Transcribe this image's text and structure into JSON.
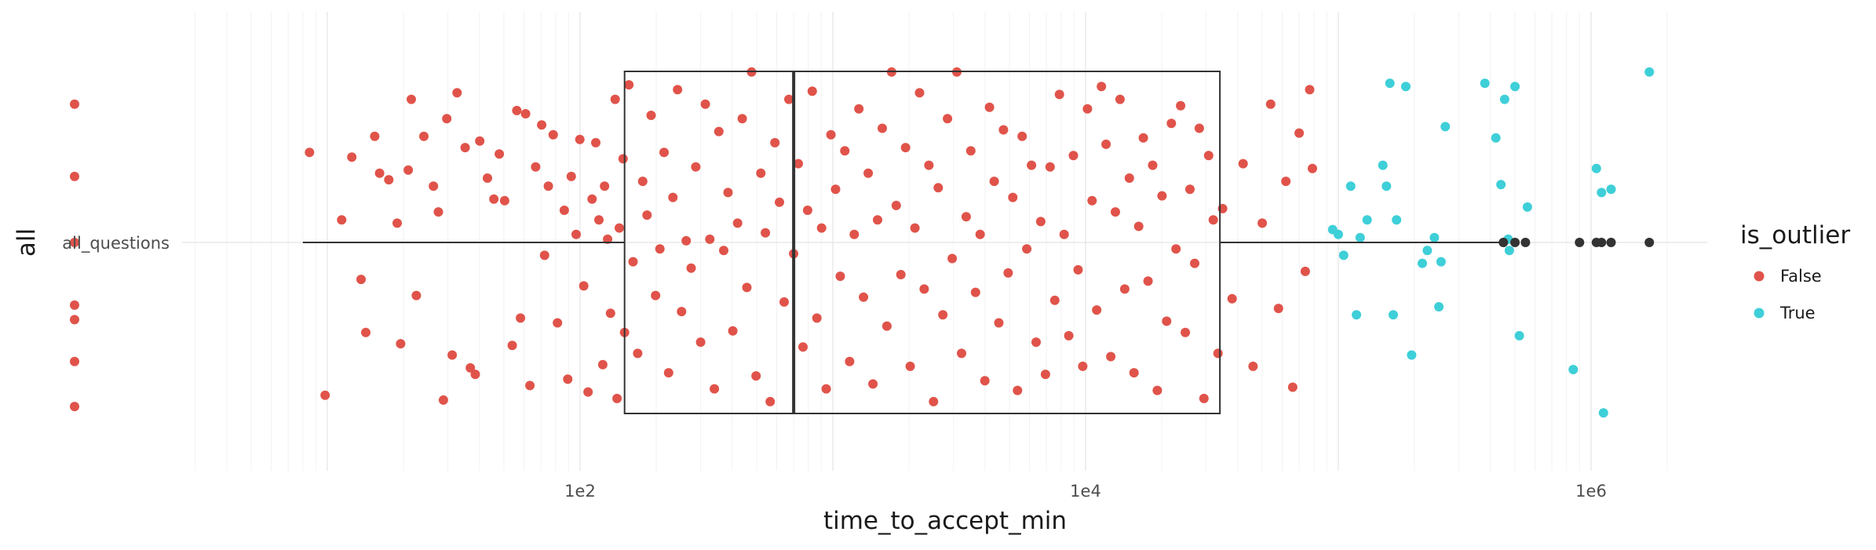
{
  "chart_data": {
    "type": "scatter",
    "subtype": "jittered strip plot with boxplot",
    "xlabel": "time_to_accept_min",
    "ylabel": "all",
    "x_scale": "log10",
    "xlim": [
      1,
      4500000
    ],
    "x_ticks": [
      {
        "value": 100,
        "label": "1e2"
      },
      {
        "value": 10000,
        "label": "1e4"
      },
      {
        "value": 1000000,
        "label": "1e6"
      }
    ],
    "categories": [
      "all_questions"
    ],
    "grid": true,
    "legend": {
      "title": "is_outlier",
      "placement": "right",
      "entries": [
        {
          "label": "False",
          "color": "#e0534a"
        },
        {
          "label": "True",
          "color": "#3ecfd8"
        }
      ]
    },
    "boxplot": {
      "category": "all_questions",
      "q1": 150,
      "median": 700,
      "q3": 34000,
      "whisker_low": 8,
      "whisker_high": 450000,
      "box_color": "#333333",
      "outliers": [
        450000,
        500000,
        550000,
        900000,
        1050000,
        1100000,
        1200000,
        1700000
      ]
    },
    "series": [
      {
        "name": "False",
        "color": "#e0534a",
        "points": [
          [
            1,
            0.86
          ],
          [
            1,
            0.41
          ],
          [
            1,
            0.0
          ],
          [
            1,
            -0.39
          ],
          [
            1,
            -0.74
          ],
          [
            1,
            -1.02
          ],
          [
            1,
            -0.48
          ],
          [
            8.5,
            0.56
          ],
          [
            9.8,
            -0.95
          ],
          [
            11.4,
            0.14
          ],
          [
            12.5,
            0.53
          ],
          [
            13.6,
            -0.23
          ],
          [
            14.2,
            -0.56
          ],
          [
            15.4,
            0.66
          ],
          [
            16.1,
            0.43
          ],
          [
            17.5,
            0.39
          ],
          [
            18.9,
            0.12
          ],
          [
            19.5,
            -0.63
          ],
          [
            20.9,
            0.45
          ],
          [
            21.5,
            0.89
          ],
          [
            22.5,
            -0.33
          ],
          [
            24.1,
            0.66
          ],
          [
            26.3,
            0.35
          ],
          [
            27.5,
            0.19
          ],
          [
            28.8,
            -0.98
          ],
          [
            29.7,
            0.77
          ],
          [
            31.2,
            -0.7
          ],
          [
            32.6,
            0.93
          ],
          [
            35.1,
            0.59
          ],
          [
            36.8,
            -0.78
          ],
          [
            38.5,
            -0.82
          ],
          [
            40.1,
            0.63
          ],
          [
            43,
            0.4
          ],
          [
            45.6,
            0.27
          ],
          [
            47.9,
            0.55
          ],
          [
            50.3,
            0.26
          ],
          [
            53.9,
            -0.64
          ],
          [
            56.2,
            0.82
          ],
          [
            58.1,
            -0.47
          ],
          [
            60.9,
            0.8
          ],
          [
            63.3,
            -0.89
          ],
          [
            66.7,
            0.47
          ],
          [
            70.5,
            0.73
          ],
          [
            72.4,
            -0.08
          ],
          [
            74.9,
            0.35
          ],
          [
            78.3,
            0.67
          ],
          [
            81.4,
            -0.5
          ],
          [
            86.6,
            0.2
          ],
          [
            89.4,
            -0.85
          ],
          [
            92.3,
            0.41
          ],
          [
            96.5,
            0.05
          ],
          [
            99.8,
            0.64
          ],
          [
            103.4,
            -0.27
          ],
          [
            107.6,
            -0.93
          ],
          [
            111.6,
            0.27
          ],
          [
            115.4,
            0.62
          ],
          [
            118.7,
            0.14
          ],
          [
            123,
            -0.76
          ],
          [
            125,
            0.35
          ],
          [
            128.5,
            0.02
          ],
          [
            132,
            -0.44
          ],
          [
            137.7,
            0.89
          ],
          [
            140,
            -0.97
          ],
          [
            143,
            0.09
          ],
          [
            148,
            0.52
          ],
          [
            150,
            -0.56
          ],
          [
            156,
            0.98
          ],
          [
            162,
            -0.12
          ],
          [
            169,
            -0.69
          ],
          [
            177,
            0.38
          ],
          [
            184,
            0.17
          ],
          [
            191,
            0.79
          ],
          [
            199,
            -0.33
          ],
          [
            207,
            -0.04
          ],
          [
            215,
            0.56
          ],
          [
            224,
            -0.81
          ],
          [
            233,
            0.28
          ],
          [
            243,
            0.95
          ],
          [
            252,
            -0.43
          ],
          [
            263,
            0.01
          ],
          [
            275,
            -0.16
          ],
          [
            287,
            0.47
          ],
          [
            300,
            -0.62
          ],
          [
            313,
            0.86
          ],
          [
            326,
            0.02
          ],
          [
            340,
            -0.91
          ],
          [
            354,
            0.69
          ],
          [
            370,
            -0.05
          ],
          [
            385,
            0.31
          ],
          [
            402,
            -0.55
          ],
          [
            420,
            0.12
          ],
          [
            438,
            0.77
          ],
          [
            457,
            -0.28
          ],
          [
            477,
            1.06
          ],
          [
            497,
            -0.83
          ],
          [
            519,
            0.43
          ],
          [
            541,
            0.06
          ],
          [
            565,
            -0.99
          ],
          [
            590,
            0.62
          ],
          [
            615,
            0.25
          ],
          [
            642,
            -0.37
          ],
          [
            670,
            0.89
          ],
          [
            700,
            -0.07
          ],
          [
            730,
            0.49
          ],
          [
            762,
            -0.65
          ],
          [
            795,
            0.2
          ],
          [
            829,
            0.94
          ],
          [
            865,
            -0.47
          ],
          [
            903,
            0.09
          ],
          [
            942,
            -0.91
          ],
          [
            983,
            0.67
          ],
          [
            1025,
            0.33
          ],
          [
            1070,
            -0.21
          ],
          [
            1116,
            0.57
          ],
          [
            1165,
            -0.74
          ],
          [
            1216,
            0.05
          ],
          [
            1268,
            0.83
          ],
          [
            1323,
            -0.34
          ],
          [
            1381,
            0.43
          ],
          [
            1441,
            -0.88
          ],
          [
            1503,
            0.14
          ],
          [
            1569,
            0.71
          ],
          [
            1637,
            -0.52
          ],
          [
            1708,
            1.06
          ],
          [
            1782,
            0.23
          ],
          [
            1859,
            -0.2
          ],
          [
            1940,
            0.59
          ],
          [
            2024,
            -0.77
          ],
          [
            2112,
            0.09
          ],
          [
            2203,
            0.93
          ],
          [
            2299,
            -0.29
          ],
          [
            2399,
            0.48
          ],
          [
            2503,
            -0.99
          ],
          [
            2612,
            0.34
          ],
          [
            2725,
            -0.45
          ],
          [
            2843,
            0.77
          ],
          [
            2967,
            -0.1
          ],
          [
            3096,
            1.06
          ],
          [
            3230,
            -0.69
          ],
          [
            3370,
            0.16
          ],
          [
            3516,
            0.57
          ],
          [
            3669,
            -0.31
          ],
          [
            3828,
            0.05
          ],
          [
            3994,
            -0.86
          ],
          [
            4168,
            0.84
          ],
          [
            4349,
            0.38
          ],
          [
            4537,
            -0.5
          ],
          [
            4734,
            0.7
          ],
          [
            4940,
            -0.19
          ],
          [
            5154,
            0.28
          ],
          [
            5378,
            -0.92
          ],
          [
            5611,
            0.66
          ],
          [
            5855,
            -0.04
          ],
          [
            6109,
            0.48
          ],
          [
            6374,
            -0.62
          ],
          [
            6650,
            0.13
          ],
          [
            6939,
            -0.82
          ],
          [
            7240,
            0.47
          ],
          [
            7554,
            -0.36
          ],
          [
            7882,
            0.92
          ],
          [
            8224,
            0.05
          ],
          [
            8581,
            -0.58
          ],
          [
            8953,
            0.54
          ],
          [
            9342,
            -0.17
          ],
          [
            9747,
            -0.77
          ],
          [
            10170,
            0.83
          ],
          [
            10611,
            0.26
          ],
          [
            11072,
            -0.42
          ],
          [
            11552,
            0.97
          ],
          [
            12054,
            0.61
          ],
          [
            12576,
            -0.71
          ],
          [
            13122,
            0.19
          ],
          [
            13691,
            0.89
          ],
          [
            14285,
            -0.29
          ],
          [
            14905,
            0.4
          ],
          [
            15551,
            -0.81
          ],
          [
            16226,
            0.1
          ],
          [
            16930,
            0.65
          ],
          [
            17665,
            -0.24
          ],
          [
            18431,
            0.48
          ],
          [
            19231,
            -0.92
          ],
          [
            20065,
            0.29
          ],
          [
            20936,
            -0.49
          ],
          [
            21844,
            0.74
          ],
          [
            22792,
            -0.04
          ],
          [
            23780,
            0.85
          ],
          [
            24812,
            -0.56
          ],
          [
            25888,
            0.33
          ],
          [
            27011,
            -0.13
          ],
          [
            28183,
            0.71
          ],
          [
            29406,
            -0.97
          ],
          [
            30681,
            0.54
          ],
          [
            32012,
            0.14
          ],
          [
            33401,
            -0.69
          ],
          [
            34850,
            0.21
          ],
          [
            38000,
            -0.35
          ],
          [
            42000,
            0.49
          ],
          [
            46000,
            -0.77
          ],
          [
            50000,
            0.12
          ],
          [
            54000,
            0.86
          ],
          [
            58000,
            -0.41
          ],
          [
            62000,
            0.38
          ],
          [
            66000,
            -0.9
          ],
          [
            70000,
            0.68
          ],
          [
            74000,
            -0.18
          ],
          [
            77000,
            0.95
          ],
          [
            79000,
            0.46
          ]
        ]
      },
      {
        "name": "True",
        "color": "#3ecfd8",
        "points": [
          [
            95000,
            0.08
          ],
          [
            100000,
            0.05
          ],
          [
            105000,
            -0.08
          ],
          [
            112000,
            0.35
          ],
          [
            118000,
            -0.45
          ],
          [
            122000,
            0.03
          ],
          [
            130000,
            0.14
          ],
          [
            150000,
            0.48
          ],
          [
            155000,
            0.35
          ],
          [
            160000,
            0.99
          ],
          [
            165000,
            -0.45
          ],
          [
            170000,
            0.14
          ],
          [
            185000,
            0.97
          ],
          [
            195000,
            -0.7
          ],
          [
            215000,
            -0.13
          ],
          [
            225000,
            -0.05
          ],
          [
            240000,
            0.03
          ],
          [
            250000,
            -0.4
          ],
          [
            255000,
            -0.12
          ],
          [
            265000,
            0.72
          ],
          [
            380000,
            0.99
          ],
          [
            420000,
            0.65
          ],
          [
            440000,
            0.36
          ],
          [
            455000,
            0.89
          ],
          [
            470000,
            0.02
          ],
          [
            475000,
            -0.05
          ],
          [
            500000,
            0.97
          ],
          [
            520000,
            -0.58
          ],
          [
            560000,
            0.22
          ],
          [
            850000,
            -0.79
          ],
          [
            1050000,
            0.46
          ],
          [
            1100000,
            0.31
          ],
          [
            1120000,
            -1.06
          ],
          [
            1200000,
            0.33
          ],
          [
            1700000,
            1.06
          ]
        ]
      }
    ]
  }
}
